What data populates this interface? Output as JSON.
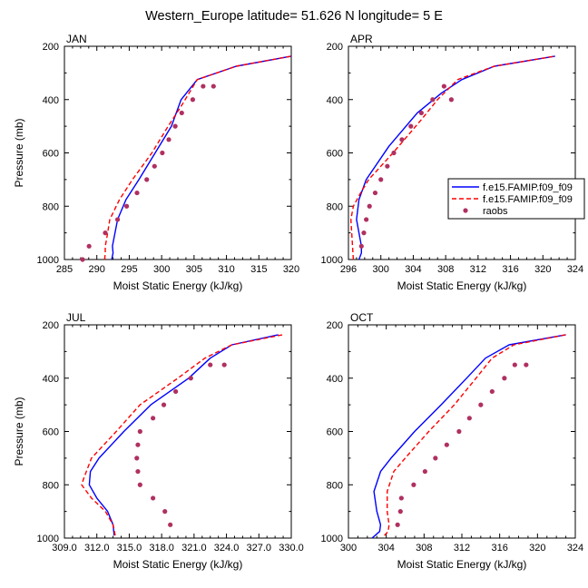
{
  "figure": {
    "title": "Western_Europe  latitude= 51.626 N longitude= 5 E"
  },
  "colors": {
    "model1": "#0000ff",
    "model2": "#ff0000",
    "obs": "#b03060",
    "axis": "#000000"
  },
  "legend": {
    "placement": "right of APR panel",
    "entries": [
      {
        "label": "f.e15.FAMIP.f09_f09",
        "style": "solid-line",
        "color": "#0000ff"
      },
      {
        "label": "f.e15.FAMIP.f09_f09",
        "style": "dashed-line",
        "color": "#ff0000"
      },
      {
        "label": "raobs",
        "style": "marker",
        "color": "#b03060"
      }
    ]
  },
  "chart_data": [
    {
      "type": "line",
      "title": "JAN",
      "xlabel": "Moist Static Energy (kJ/kg)",
      "ylabel": "Pressure (mb)",
      "xlim": [
        285,
        320
      ],
      "ylim": [
        1000,
        200
      ],
      "y_reversed": true,
      "xticks": [
        "285",
        "290",
        "295",
        "300",
        "305",
        "310",
        "315",
        "320"
      ],
      "yticks": [
        "200",
        "400",
        "600",
        "800",
        "1000"
      ],
      "series": [
        {
          "name": "f.e15.FAMIP.f09_f09",
          "style": "solid",
          "color": "#0000ff",
          "x": [
            292.3,
            292.5,
            292.4,
            292.6,
            293.2,
            294.5,
            296.5,
            299.0,
            301.5,
            303.0,
            305.5,
            311.5,
            320.0
          ],
          "y": [
            1000,
            975,
            950,
            925,
            850,
            775,
            700,
            600,
            500,
            400,
            325,
            275,
            237
          ]
        },
        {
          "name": "f.e15.FAMIP.f09_f09",
          "style": "dashed",
          "color": "#ff0000",
          "x": [
            291.2,
            291.3,
            291.3,
            291.5,
            292.0,
            293.5,
            295.5,
            298.5,
            301.0,
            303.0,
            305.5,
            311.5,
            320.0
          ],
          "y": [
            1000,
            975,
            950,
            925,
            850,
            775,
            700,
            600,
            500,
            425,
            325,
            275,
            237
          ]
        },
        {
          "name": "raobs",
          "style": "marker",
          "color": "#b03060",
          "x": [
            287.8,
            288.8,
            291.3,
            293.2,
            294.6,
            296.2,
            297.7,
            298.9,
            300.1,
            301.1,
            302.1,
            303.1,
            304.8,
            306.4,
            308.0
          ],
          "y": [
            1000,
            950,
            900,
            850,
            800,
            750,
            700,
            650,
            600,
            550,
            500,
            450,
            400,
            350,
            350
          ]
        }
      ]
    },
    {
      "type": "line",
      "title": "APR",
      "xlabel": "Moist Static Energy (kJ/kg)",
      "ylabel": "",
      "xlim": [
        296,
        324
      ],
      "ylim": [
        1000,
        200
      ],
      "y_reversed": true,
      "xticks": [
        "296",
        "300",
        "304",
        "308",
        "312",
        "316",
        "320",
        "324"
      ],
      "yticks": [
        "200",
        "400",
        "600",
        "800",
        "1000"
      ],
      "series": [
        {
          "name": "f.e15.FAMIP.f09_f09",
          "style": "solid",
          "color": "#0000ff",
          "x": [
            297.3,
            297.6,
            297.6,
            297.3,
            297.0,
            297.3,
            298.2,
            301.0,
            304.5,
            307.5,
            310.0,
            314.0,
            321.5
          ],
          "y": [
            1000,
            975,
            950,
            900,
            850,
            775,
            700,
            575,
            450,
            375,
            325,
            275,
            237
          ]
        },
        {
          "name": "f.e15.FAMIP.f09_f09",
          "style": "dashed",
          "color": "#ff0000",
          "x": [
            296.6,
            296.5,
            296.4,
            296.3,
            296.6,
            297.5,
            298.5,
            301.5,
            305.0,
            307.0,
            309.5,
            314.0,
            321.5
          ],
          "y": [
            1000,
            950,
            900,
            850,
            800,
            750,
            700,
            600,
            475,
            400,
            325,
            275,
            237
          ]
        },
        {
          "name": "raobs",
          "style": "marker",
          "color": "#b03060",
          "x": [
            297.6,
            297.9,
            298.2,
            298.6,
            299.3,
            300.0,
            300.8,
            301.6,
            302.6,
            303.7,
            305.0,
            306.4,
            307.8,
            308.7
          ],
          "y": [
            950,
            900,
            850,
            800,
            750,
            700,
            650,
            600,
            550,
            500,
            450,
            400,
            350,
            400
          ]
        }
      ]
    },
    {
      "type": "line",
      "title": "JUL",
      "xlabel": "Moist Static Energy (kJ/kg)",
      "ylabel": "Pressure (mb)",
      "xlim": [
        309,
        330
      ],
      "ylim": [
        1000,
        200
      ],
      "y_reversed": true,
      "xticks": [
        "309.0",
        "312.0",
        "315.0",
        "318.0",
        "321.0",
        "324.0",
        "327.0",
        "330.0"
      ],
      "yticks": [
        "200",
        "400",
        "600",
        "800",
        "1000"
      ],
      "series": [
        {
          "name": "f.e15.FAMIP.f09_f09",
          "style": "solid",
          "color": "#0000ff",
          "x": [
            313.6,
            313.5,
            313.0,
            312.0,
            311.3,
            311.4,
            312.2,
            314.5,
            317.0,
            320.5,
            322.5,
            324.5,
            328.8
          ],
          "y": [
            990,
            950,
            900,
            850,
            800,
            750,
            700,
            600,
            500,
            400,
            325,
            275,
            237
          ]
        },
        {
          "name": "f.e15.FAMIP.f09_f09",
          "style": "dashed",
          "color": "#ff0000",
          "x": [
            313.7,
            313.5,
            312.8,
            311.5,
            310.6,
            310.8,
            311.5,
            313.8,
            316.0,
            319.5,
            322.0,
            324.5,
            329.2
          ],
          "y": [
            990,
            950,
            900,
            850,
            800,
            775,
            700,
            600,
            500,
            400,
            325,
            275,
            237
          ]
        },
        {
          "name": "raobs",
          "style": "marker",
          "color": "#b03060",
          "x": [
            318.8,
            318.3,
            317.2,
            316.0,
            315.8,
            315.7,
            315.8,
            316.0,
            317.2,
            318.2,
            319.3,
            320.7,
            322.5,
            323.8
          ],
          "y": [
            950,
            900,
            850,
            800,
            750,
            700,
            650,
            600,
            550,
            500,
            450,
            400,
            350,
            350
          ]
        }
      ]
    },
    {
      "type": "line",
      "title": "OCT",
      "xlabel": "Moist Static Energy (kJ/kg)",
      "ylabel": "",
      "xlim": [
        300,
        324
      ],
      "ylim": [
        1000,
        200
      ],
      "y_reversed": true,
      "xticks": [
        "300",
        "304",
        "308",
        "312",
        "316",
        "320",
        "324"
      ],
      "yticks": [
        "200",
        "400",
        "600",
        "800",
        "1000"
      ],
      "series": [
        {
          "name": "f.e15.FAMIP.f09_f09",
          "style": "solid",
          "color": "#0000ff",
          "x": [
            302.5,
            303.3,
            303.4,
            303.0,
            302.7,
            303.4,
            304.5,
            307.0,
            309.8,
            312.5,
            314.5,
            317.0,
            323.0
          ],
          "y": [
            1000,
            975,
            950,
            900,
            825,
            750,
            700,
            600,
            500,
            400,
            325,
            275,
            237
          ]
        },
        {
          "name": "f.e15.FAMIP.f09_f09",
          "style": "dashed",
          "color": "#ff0000",
          "x": [
            303.8,
            304.2,
            304.3,
            304.1,
            304.1,
            304.8,
            306.0,
            308.5,
            311.2,
            313.5,
            315.2,
            317.5,
            323.0
          ],
          "y": [
            990,
            975,
            950,
            900,
            825,
            750,
            700,
            600,
            500,
            400,
            325,
            275,
            237
          ]
        },
        {
          "name": "raobs",
          "style": "marker",
          "color": "#b03060",
          "x": [
            305.2,
            305.5,
            305.6,
            306.9,
            308.1,
            309.2,
            310.4,
            311.7,
            312.8,
            314.0,
            315.2,
            316.5,
            317.6,
            318.8
          ],
          "y": [
            950,
            900,
            850,
            800,
            750,
            700,
            650,
            600,
            550,
            500,
            450,
            400,
            350,
            350
          ]
        }
      ]
    }
  ]
}
